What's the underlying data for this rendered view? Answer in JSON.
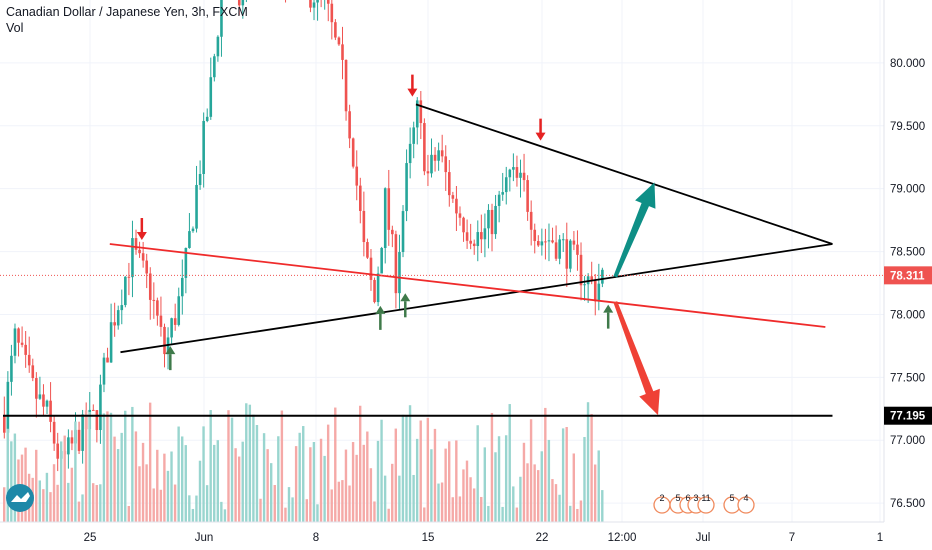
{
  "header": {
    "symbol": "Canadian Dollar / Japanese Yen, 3h, FXCM",
    "volume_label": "Vol"
  },
  "colors": {
    "up": "#26a69a",
    "down": "#ef5350",
    "vol_up": "#99d5cf",
    "vol_down": "#f5a9a7",
    "trend_black": "#000000",
    "trend_red": "#ef2b2b",
    "arrow_up": "#0e8f86",
    "arrow_down": "#ef4136",
    "marker_red": "#e52222",
    "marker_green": "#3f7a4a",
    "price_tag": "#ef5350"
  },
  "chart_data": {
    "type": "candlestick",
    "instrument": "CADJPY",
    "timeframe": "3h",
    "x_ticks": [
      "25",
      "Jun",
      "8",
      "15",
      "22",
      "12:00",
      "Jul",
      "7",
      "1"
    ],
    "y_ticks": [
      76.5,
      77.0,
      77.5,
      78.0,
      78.5,
      79.0,
      79.5,
      80.0
    ],
    "ylim": [
      76.35,
      80.5
    ],
    "current_price": 78.311,
    "horizontal_level": 77.195,
    "anchors": [
      [
        0,
        77.2
      ],
      [
        3,
        77.8
      ],
      [
        8,
        77.4
      ],
      [
        12,
        77.2
      ],
      [
        16,
        76.8
      ],
      [
        20,
        77.0
      ],
      [
        26,
        77.2
      ],
      [
        30,
        77.9
      ],
      [
        36,
        78.5
      ],
      [
        41,
        78.2
      ],
      [
        45,
        77.7
      ],
      [
        50,
        78.2
      ],
      [
        54,
        79.0
      ],
      [
        58,
        79.8
      ],
      [
        62,
        80.8
      ],
      [
        66,
        80.5
      ],
      [
        70,
        80.9
      ],
      [
        78,
        80.7
      ],
      [
        84,
        80.6
      ],
      [
        90,
        80.5
      ],
      [
        95,
        79.9
      ],
      [
        98,
        79.3
      ],
      [
        101,
        78.5
      ],
      [
        104,
        78.1
      ],
      [
        107,
        78.9
      ],
      [
        110,
        78.3
      ],
      [
        113,
        79.1
      ],
      [
        116,
        79.6
      ],
      [
        119,
        79.1
      ],
      [
        122,
        79.3
      ],
      [
        126,
        78.9
      ],
      [
        130,
        78.7
      ],
      [
        134,
        78.6
      ],
      [
        138,
        78.8
      ],
      [
        142,
        79.1
      ],
      [
        146,
        79.0
      ],
      [
        150,
        78.6
      ],
      [
        154,
        78.6
      ],
      [
        158,
        78.5
      ],
      [
        163,
        78.3
      ],
      [
        166,
        78.2
      ],
      [
        168,
        78.31
      ]
    ],
    "volume_range": [
      3,
      30
    ],
    "x_labels_text": {
      "indicators": [
        "2",
        "5",
        "6",
        "3",
        "11",
        "5",
        "4"
      ]
    },
    "trendlines": [
      {
        "name": "upper-resistance",
        "color": "black",
        "from": [
          116,
          79.67
        ],
        "to": [
          233,
          78.56
        ]
      },
      {
        "name": "lower-support",
        "color": "black",
        "from": [
          33,
          77.7
        ],
        "to": [
          233,
          78.56
        ]
      },
      {
        "name": "red-line",
        "color": "red",
        "from": [
          30,
          78.56
        ],
        "to": [
          231,
          77.9
        ]
      },
      {
        "name": "level-77195",
        "color": "black",
        "from": [
          0,
          77.195
        ],
        "to": [
          233,
          77.195
        ]
      }
    ],
    "signals": [
      {
        "type": "down",
        "x": 39,
        "price": 78.56
      },
      {
        "type": "up",
        "x": 47,
        "price": 77.78
      },
      {
        "type": "up",
        "x": 106,
        "price": 78.1
      },
      {
        "type": "up",
        "x": 113,
        "price": 78.2
      },
      {
        "type": "down",
        "x": 115,
        "price": 79.7
      },
      {
        "type": "down",
        "x": 151,
        "price": 79.35
      },
      {
        "type": "up",
        "x": 170,
        "price": 78.11
      }
    ],
    "projections": [
      {
        "direction": "up",
        "from": [
          172,
          78.3
        ],
        "to": [
          183,
          79.05
        ]
      },
      {
        "direction": "down",
        "from": [
          172,
          78.1
        ],
        "to": [
          184,
          77.2
        ]
      }
    ]
  },
  "price_axis": {
    "current_label": "78.311",
    "level_label": "77.195"
  }
}
